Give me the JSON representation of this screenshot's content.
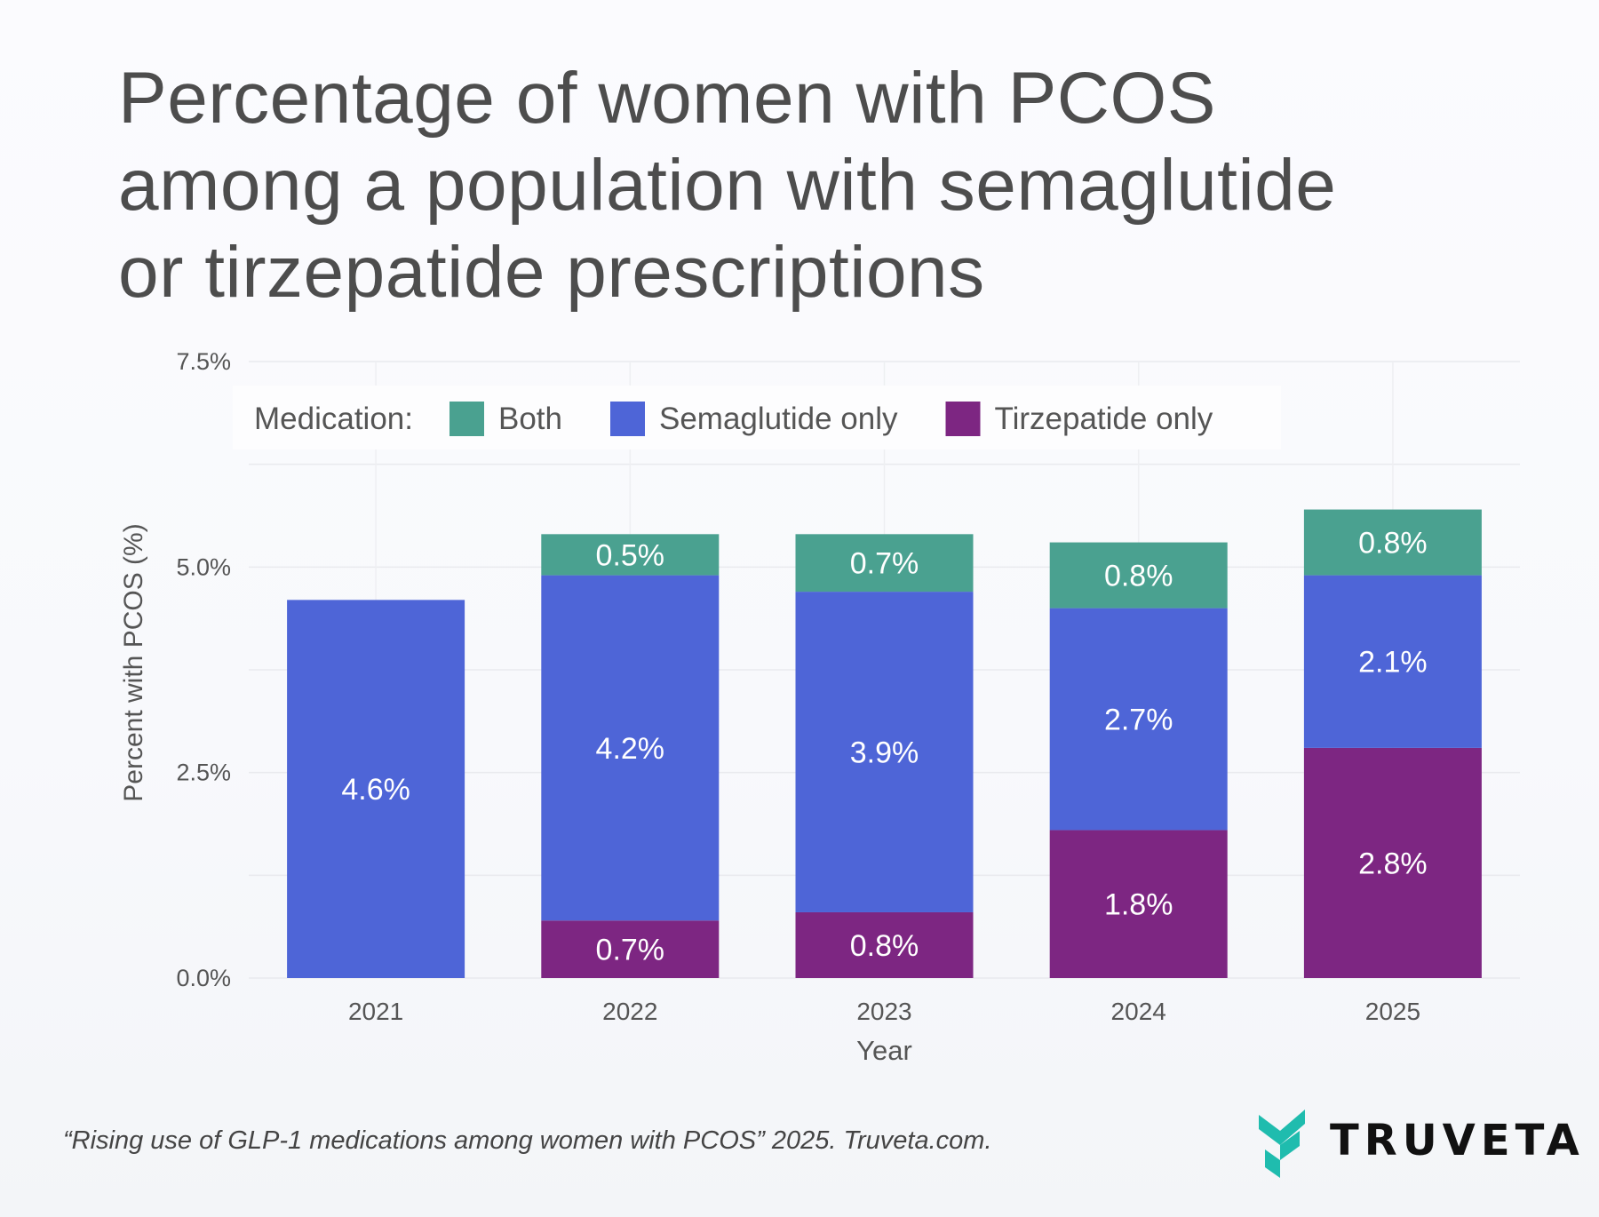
{
  "title_lines": [
    "Percentage of women with PCOS",
    "among a population with semaglutide",
    "or tirzepatide prescriptions"
  ],
  "footer": "“Rising use of GLP-1 medications among women with PCOS” 2025. Truveta.com.",
  "logo": "TRUVETA",
  "chart_data": {
    "type": "bar",
    "stacked": true,
    "categories": [
      "2021",
      "2022",
      "2023",
      "2024",
      "2025"
    ],
    "xlabel": "Year",
    "ylabel": "Percent with PCOS (%)",
    "ylim": [
      0,
      7.5
    ],
    "yticks": [
      0,
      2.5,
      5.0,
      7.5
    ],
    "ytick_labels": [
      "0.0%",
      "2.5%",
      "5.0%",
      "7.5%"
    ],
    "grid": true,
    "legend": {
      "title": "Medication:",
      "placement": "top"
    },
    "series": [
      {
        "name": "Tirzepatide only",
        "color": "#7d2682",
        "values": [
          0,
          0.7,
          0.8,
          1.8,
          2.8
        ],
        "labels": [
          "",
          "0.7%",
          "0.8%",
          "1.8%",
          "2.8%"
        ]
      },
      {
        "name": "Semaglutide only",
        "color": "#4e65d7",
        "values": [
          4.6,
          4.2,
          3.9,
          2.7,
          2.1
        ],
        "labels": [
          "4.6%",
          "4.2%",
          "3.9%",
          "2.7%",
          "2.1%"
        ]
      },
      {
        "name": "Both",
        "color": "#4aa190",
        "values": [
          0,
          0.5,
          0.7,
          0.8,
          0.8
        ],
        "labels": [
          "",
          "0.5%",
          "0.7%",
          "0.8%",
          "0.8%"
        ]
      }
    ],
    "legend_order": [
      "Both",
      "Semaglutide only",
      "Tirzepatide only"
    ]
  }
}
